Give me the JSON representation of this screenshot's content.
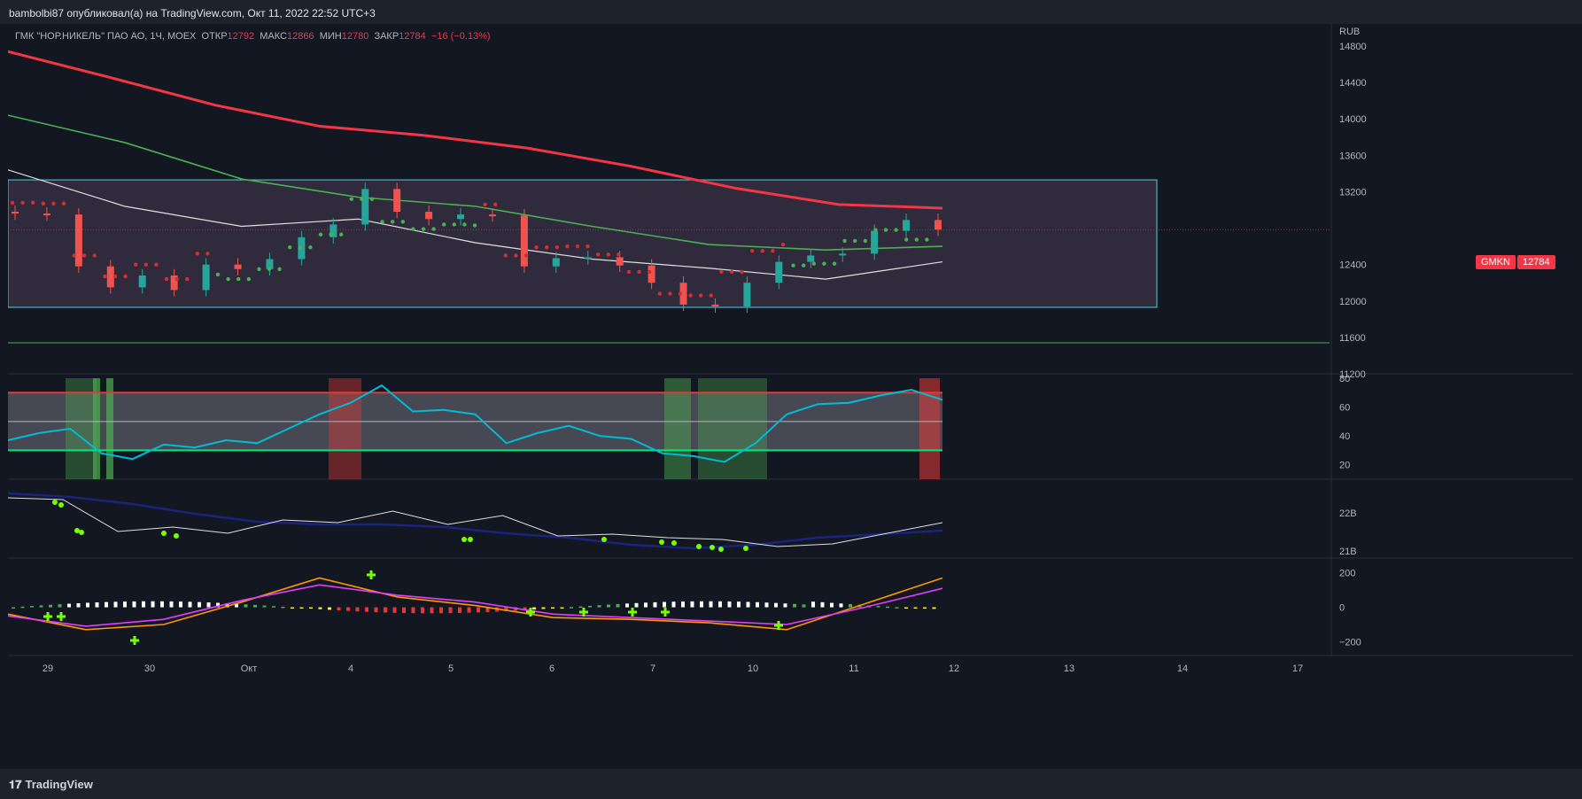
{
  "header": {
    "publisher": "bambolbi87 опубликовал(а) на TradingView.com, Окт 11, 2022 22:52 UTC+3"
  },
  "legend": {
    "symbol": "ГМК \"НОР.НИКЕЛЬ\" ПАО АО, 1Ч, MOEX",
    "open_label": "ОТКР",
    "open": "12792",
    "high_label": "МАКС",
    "high": "12866",
    "low_label": "МИН",
    "low": "12780",
    "close_label": "ЗАКР",
    "close": "12784",
    "change": "−16 (−0.13%)"
  },
  "price_axis": {
    "currency": "RUB",
    "ticks": [
      "14800",
      "14400",
      "14000",
      "13600",
      "13200",
      "12400",
      "12000",
      "11600",
      "11200"
    ],
    "symbol_tag": "GMKN",
    "last_price_tag": "12784"
  },
  "rsi_axis": {
    "ticks": [
      "80",
      "60",
      "40",
      "20"
    ]
  },
  "volume_axis": {
    "ticks": [
      "22B",
      "21B"
    ]
  },
  "macd_axis": {
    "ticks": [
      "200",
      "0",
      "−200"
    ]
  },
  "time_axis": {
    "labels": [
      "29",
      "30",
      "Окт",
      "4",
      "5",
      "6",
      "7",
      "10",
      "11",
      "12",
      "13",
      "14",
      "17"
    ]
  },
  "footer": {
    "brand": "TradingView"
  },
  "colors": {
    "background": "#131722",
    "bull": "#26a69a",
    "bear": "#ef5350",
    "ema200": "#f23645",
    "ema100": "#4caf50",
    "ema50": "#e0e0e0",
    "rsi": "#00bcd4",
    "range_box": "#4dd0e1",
    "macd_fast": "#ff9800",
    "macd_signal": "#e040fb"
  },
  "chart_data": {
    "type": "candlestick",
    "price_scale": {
      "ylim": [
        11200,
        14800
      ]
    },
    "range_box": {
      "top": 13330,
      "bottom": 11930
    },
    "support_line": 11540,
    "ema200": [
      14740,
      14450,
      14150,
      13920,
      13820,
      13680,
      13480,
      13240,
      13060,
      13020
    ],
    "ema100": [
      14040,
      13740,
      13340,
      13140,
      13040,
      12820,
      12620,
      12560,
      12600
    ],
    "ema50": [
      13440,
      13040,
      12820,
      12900,
      12640,
      12460,
      12360,
      12240,
      12430
    ],
    "candles_close": [
      12960,
      12950,
      12380,
      12150,
      12280,
      12120,
      12400,
      12350,
      12460,
      12700,
      12840,
      13230,
      12980,
      12900,
      12950,
      12940,
      12380,
      12470,
      12480,
      12390,
      12200,
      11960,
      11940,
      12200,
      12430,
      12500,
      12520,
      12770,
      12890,
      12784
    ],
    "rsi": {
      "ylim": [
        10,
        80
      ],
      "upper": 70,
      "middle": 50,
      "lower": 30,
      "values": [
        37,
        42,
        45,
        28,
        24,
        34,
        32,
        37,
        35,
        45,
        55,
        63,
        75,
        57,
        58,
        55,
        35,
        42,
        47,
        40,
        38,
        28,
        26,
        22,
        35,
        55,
        62,
        63,
        68,
        72,
        65
      ]
    },
    "volume_ma": {
      "ticks": [
        "22B",
        "21B"
      ]
    },
    "macd": {
      "ylim": [
        -280,
        260
      ],
      "fast": [
        -40,
        -130,
        -100,
        30,
        170,
        60,
        10,
        -60,
        -70,
        -90,
        -130,
        20,
        170
      ],
      "signal": [
        -50,
        -110,
        -70,
        40,
        130,
        70,
        30,
        -40,
        -60,
        -80,
        -100,
        0,
        110
      ]
    }
  }
}
